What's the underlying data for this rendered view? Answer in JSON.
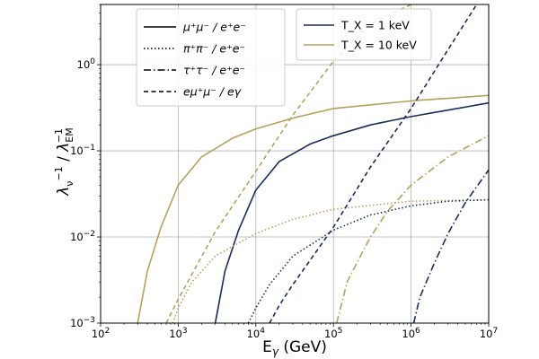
{
  "chart_data": {
    "type": "line",
    "x_scale": "log",
    "y_scale": "log",
    "xlim": [
      100,
      10000000
    ],
    "ylim": [
      0.001,
      5
    ],
    "grid": true,
    "xlabel": "E_γ (GeV)",
    "ylabel": "λ_ν^−1 / λ_EM^−1",
    "x_ticks": [
      {
        "value": 100,
        "base": "10",
        "exp": "2"
      },
      {
        "value": 1000,
        "base": "10",
        "exp": "3"
      },
      {
        "value": 10000,
        "base": "10",
        "exp": "4"
      },
      {
        "value": 100000,
        "base": "10",
        "exp": "5"
      },
      {
        "value": 1000000,
        "base": "10",
        "exp": "6"
      },
      {
        "value": 10000000,
        "base": "10",
        "exp": "7"
      }
    ],
    "y_ticks": [
      {
        "value": 0.001,
        "base": "10",
        "exp": "−3"
      },
      {
        "value": 0.01,
        "base": "10",
        "exp": "−2"
      },
      {
        "value": 0.1,
        "base": "10",
        "exp": "−1"
      },
      {
        "value": 1,
        "base": "10",
        "exp": "0"
      }
    ],
    "colors": {
      "T1": "#1a2b5e",
      "T10": "#b5a25a"
    },
    "legend_channels": {
      "placement": "top-center",
      "entries": [
        {
          "style": "solid",
          "label": "μ⁺μ⁻ / e⁺e⁻"
        },
        {
          "style": "dotted",
          "label": "π⁺π⁻ / e⁺e⁻"
        },
        {
          "style": "dashdot",
          "label": "τ⁺τ⁻ / e⁺e⁻"
        },
        {
          "style": "dashed",
          "label": "eμ⁺μ⁻ / eγ"
        }
      ]
    },
    "legend_temps": {
      "placement": "top-right",
      "entries": [
        {
          "color": "#1a2b5e",
          "label": "T_X = 1 keV"
        },
        {
          "color": "#b5a25a",
          "label": "T_X = 10 keV"
        }
      ]
    },
    "series": [
      {
        "channel": "mumu",
        "temp": "10 keV",
        "style": "solid",
        "color": "#b5a25a",
        "x": [
          300,
          400,
          600,
          1000,
          2000,
          5000,
          10000,
          30000,
          100000,
          1000000,
          10000000
        ],
        "y": [
          0.001,
          0.004,
          0.013,
          0.04,
          0.085,
          0.14,
          0.18,
          0.24,
          0.31,
          0.38,
          0.44
        ]
      },
      {
        "channel": "mumu",
        "temp": "1 keV",
        "style": "solid",
        "color": "#1a2b5e",
        "x": [
          3000,
          4000,
          6000,
          10000,
          20000,
          50000,
          100000,
          300000,
          1000000,
          10000000
        ],
        "y": [
          0.001,
          0.004,
          0.012,
          0.035,
          0.075,
          0.12,
          0.15,
          0.2,
          0.25,
          0.36
        ]
      },
      {
        "channel": "pipi",
        "temp": "10 keV",
        "style": "dotted",
        "color": "#b5a25a",
        "x": [
          850,
          1000,
          1500,
          3000,
          10000,
          30000,
          100000,
          1000000,
          10000000
        ],
        "y": [
          0.001,
          0.0015,
          0.003,
          0.006,
          0.011,
          0.016,
          0.021,
          0.026,
          0.027
        ]
      },
      {
        "channel": "pipi",
        "temp": "1 keV",
        "style": "dotted",
        "color": "#1a2b5e",
        "x": [
          8000,
          10000,
          15000,
          30000,
          100000,
          300000,
          1000000,
          3000000,
          10000000
        ],
        "y": [
          0.001,
          0.0015,
          0.0028,
          0.006,
          0.012,
          0.018,
          0.023,
          0.026,
          0.027
        ]
      },
      {
        "channel": "tautau",
        "temp": "10 keV",
        "style": "dashdot",
        "color": "#b5a25a",
        "x": [
          110000,
          150000,
          200000,
          300000,
          500000,
          1000000,
          3000000,
          10000000
        ],
        "y": [
          0.001,
          0.003,
          0.005,
          0.01,
          0.02,
          0.04,
          0.085,
          0.15
        ]
      },
      {
        "channel": "tautau",
        "temp": "1 keV",
        "style": "dashdot",
        "color": "#1a2b5e",
        "x": [
          1080000,
          1300000,
          2000000,
          3000000,
          5000000,
          10000000
        ],
        "y": [
          0.001,
          0.002,
          0.005,
          0.011,
          0.025,
          0.06
        ]
      },
      {
        "channel": "emumu",
        "temp": "10 keV",
        "style": "dashed",
        "color": "#b5a25a",
        "x": [
          700,
          1000,
          3000,
          10000,
          30000,
          100000,
          300000,
          1000000
        ],
        "y": [
          0.001,
          0.0019,
          0.0115,
          0.058,
          0.26,
          1.1,
          3.0,
          5.0
        ]
      },
      {
        "channel": "emumu",
        "temp": "1 keV",
        "style": "dashed",
        "color": "#1a2b5e",
        "x": [
          15000,
          20000,
          30000,
          100000,
          300000,
          1000000,
          3000000,
          7000000
        ],
        "y": [
          0.001,
          0.0016,
          0.0028,
          0.013,
          0.065,
          0.31,
          1.5,
          5.0
        ]
      }
    ]
  }
}
